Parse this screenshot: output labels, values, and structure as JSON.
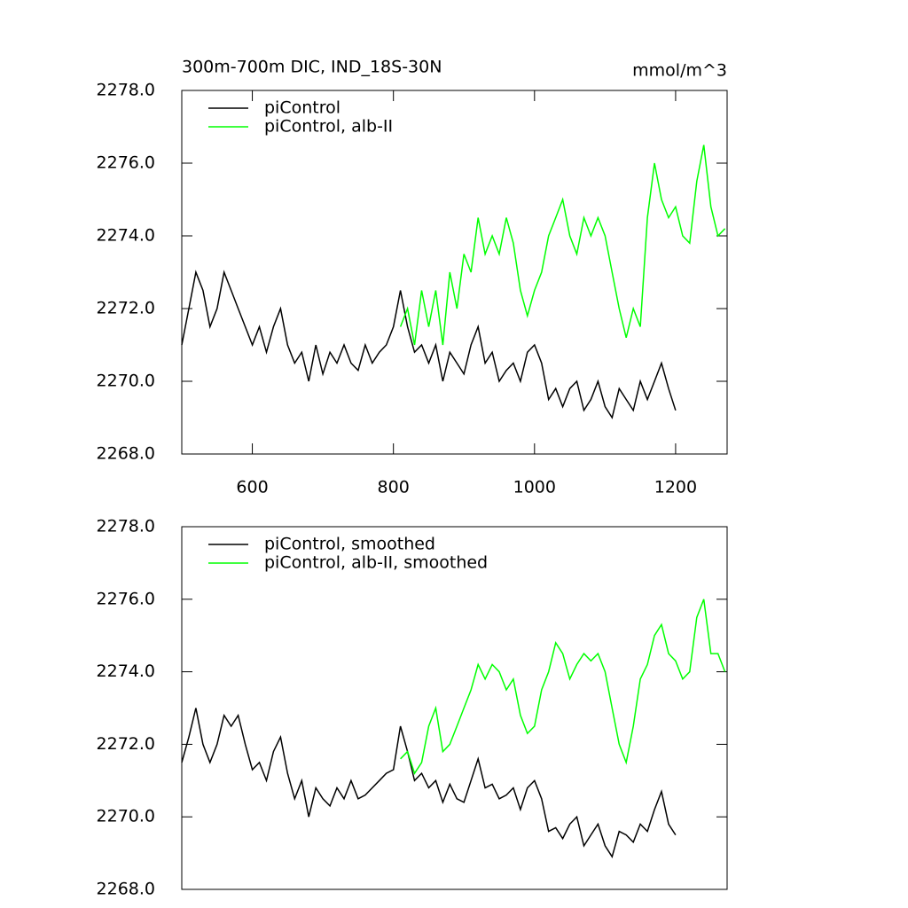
{
  "chart_data": [
    {
      "type": "line",
      "title": "300m-700m DIC, IND_18S-30N",
      "units": "mmol/m^3",
      "xlim": [
        500,
        1273
      ],
      "xticks": [
        600,
        800,
        1000,
        1200
      ],
      "ylim": [
        2268,
        2278
      ],
      "yticks": [
        {
          "value": 2268,
          "label": "2268.0"
        },
        {
          "value": 2270,
          "label": "2270.0"
        },
        {
          "value": 2272,
          "label": "2272.0"
        },
        {
          "value": 2274,
          "label": "2274.0"
        },
        {
          "value": 2276,
          "label": "2276.0"
        },
        {
          "value": 2278,
          "label": "2278.0"
        }
      ],
      "legend": "upper left",
      "series": [
        {
          "name": "piControl",
          "color": "#000000",
          "x": [
            500,
            510,
            520,
            530,
            540,
            550,
            560,
            570,
            580,
            590,
            600,
            610,
            620,
            630,
            640,
            650,
            660,
            670,
            680,
            690,
            700,
            710,
            720,
            730,
            740,
            750,
            760,
            770,
            780,
            790,
            800,
            810,
            820,
            830,
            840,
            850,
            860,
            870,
            880,
            890,
            900,
            910,
            920,
            930,
            940,
            950,
            960,
            970,
            980,
            990,
            1000,
            1010,
            1020,
            1030,
            1040,
            1050,
            1060,
            1070,
            1080,
            1090,
            1100,
            1110,
            1120,
            1130,
            1140,
            1150,
            1160,
            1170,
            1180,
            1190,
            1200
          ],
          "values": [
            2271.0,
            2272.0,
            2273.0,
            2272.5,
            2271.5,
            2272.0,
            2273.0,
            2272.5,
            2272.0,
            2271.5,
            2271.0,
            2271.5,
            2270.8,
            2271.5,
            2272.0,
            2271.0,
            2270.5,
            2270.8,
            2270.0,
            2271.0,
            2270.2,
            2270.8,
            2270.5,
            2271.0,
            2270.5,
            2270.3,
            2271.0,
            2270.5,
            2270.8,
            2271.0,
            2271.5,
            2272.5,
            2271.5,
            2270.8,
            2271.0,
            2270.5,
            2271.0,
            2270.0,
            2270.8,
            2270.5,
            2270.2,
            2271.0,
            2271.5,
            2270.5,
            2270.8,
            2270.0,
            2270.3,
            2270.5,
            2270.0,
            2270.8,
            2271.0,
            2270.5,
            2269.5,
            2269.8,
            2269.3,
            2269.8,
            2270.0,
            2269.2,
            2269.5,
            2270.0,
            2269.3,
            2269.0,
            2269.8,
            2269.5,
            2269.2,
            2270.0,
            2269.5,
            2270.0,
            2270.5,
            2269.8,
            2269.2
          ]
        },
        {
          "name": "piControl, alb-II",
          "color": "#00ff00",
          "x": [
            810,
            820,
            830,
            840,
            850,
            860,
            870,
            880,
            890,
            900,
            910,
            920,
            930,
            940,
            950,
            960,
            970,
            980,
            990,
            1000,
            1010,
            1020,
            1030,
            1040,
            1050,
            1060,
            1070,
            1080,
            1090,
            1100,
            1110,
            1120,
            1130,
            1140,
            1150,
            1160,
            1170,
            1180,
            1190,
            1200,
            1210,
            1220,
            1230,
            1240,
            1250,
            1260,
            1270
          ],
          "values": [
            2271.5,
            2272.0,
            2271.0,
            2272.5,
            2271.5,
            2272.5,
            2271.0,
            2273.0,
            2272.0,
            2273.5,
            2273.0,
            2274.5,
            2273.5,
            2274.0,
            2273.5,
            2274.5,
            2273.8,
            2272.5,
            2271.8,
            2272.5,
            2273.0,
            2274.0,
            2274.5,
            2275.0,
            2274.0,
            2273.5,
            2274.5,
            2274.0,
            2274.5,
            2274.0,
            2273.0,
            2272.0,
            2271.2,
            2272.0,
            2271.5,
            2274.5,
            2276.0,
            2275.0,
            2274.5,
            2274.8,
            2274.0,
            2273.8,
            2275.5,
            2276.5,
            2274.8,
            2274.0,
            2274.2
          ]
        }
      ]
    },
    {
      "type": "line",
      "xlim": [
        500,
        1273
      ],
      "ylim": [
        2268,
        2278
      ],
      "yticks": [
        {
          "value": 2268,
          "label": "2268.0"
        },
        {
          "value": 2270,
          "label": "2270.0"
        },
        {
          "value": 2272,
          "label": "2272.0"
        },
        {
          "value": 2274,
          "label": "2274.0"
        },
        {
          "value": 2276,
          "label": "2276.0"
        },
        {
          "value": 2278,
          "label": "2278.0"
        }
      ],
      "legend": "upper left",
      "series": [
        {
          "name": "piControl, smoothed",
          "color": "#000000",
          "x": [
            500,
            510,
            520,
            530,
            540,
            550,
            560,
            570,
            580,
            590,
            600,
            610,
            620,
            630,
            640,
            650,
            660,
            670,
            680,
            690,
            700,
            710,
            720,
            730,
            740,
            750,
            760,
            770,
            780,
            790,
            800,
            810,
            820,
            830,
            840,
            850,
            860,
            870,
            880,
            890,
            900,
            910,
            920,
            930,
            940,
            950,
            960,
            970,
            980,
            990,
            1000,
            1010,
            1020,
            1030,
            1040,
            1050,
            1060,
            1070,
            1080,
            1090,
            1100,
            1110,
            1120,
            1130,
            1140,
            1150,
            1160,
            1170,
            1180,
            1190,
            1200
          ],
          "values": [
            2271.5,
            2272.2,
            2273.0,
            2272.0,
            2271.5,
            2272.0,
            2272.8,
            2272.5,
            2272.8,
            2272.0,
            2271.3,
            2271.5,
            2271.0,
            2271.8,
            2272.2,
            2271.2,
            2270.5,
            2271.0,
            2270.0,
            2270.8,
            2270.5,
            2270.3,
            2270.8,
            2270.5,
            2271.0,
            2270.5,
            2270.6,
            2270.8,
            2271.0,
            2271.2,
            2271.3,
            2272.5,
            2271.8,
            2271.0,
            2271.2,
            2270.8,
            2271.0,
            2270.4,
            2270.9,
            2270.5,
            2270.4,
            2271.0,
            2271.6,
            2270.8,
            2270.9,
            2270.5,
            2270.6,
            2270.8,
            2270.2,
            2270.8,
            2271.0,
            2270.5,
            2269.6,
            2269.7,
            2269.4,
            2269.8,
            2270.0,
            2269.2,
            2269.5,
            2269.8,
            2269.2,
            2268.9,
            2269.6,
            2269.5,
            2269.3,
            2269.8,
            2269.6,
            2270.2,
            2270.7,
            2269.8,
            2269.5
          ]
        },
        {
          "name": "piControl, alb-II, smoothed",
          "color": "#00ff00",
          "x": [
            810,
            820,
            830,
            840,
            850,
            860,
            870,
            880,
            890,
            900,
            910,
            920,
            930,
            940,
            950,
            960,
            970,
            980,
            990,
            1000,
            1010,
            1020,
            1030,
            1040,
            1050,
            1060,
            1070,
            1080,
            1090,
            1100,
            1110,
            1120,
            1130,
            1140,
            1150,
            1160,
            1170,
            1180,
            1190,
            1200,
            1210,
            1220,
            1230,
            1240,
            1250,
            1260,
            1270
          ],
          "values": [
            2271.6,
            2271.8,
            2271.2,
            2271.5,
            2272.5,
            2273.0,
            2271.8,
            2272.0,
            2272.5,
            2273.0,
            2273.5,
            2274.2,
            2273.8,
            2274.2,
            2274.0,
            2273.5,
            2273.8,
            2272.8,
            2272.3,
            2272.5,
            2273.5,
            2274.0,
            2274.8,
            2274.5,
            2273.8,
            2274.2,
            2274.5,
            2274.3,
            2274.5,
            2274.0,
            2273.0,
            2272.0,
            2271.5,
            2272.5,
            2273.8,
            2274.2,
            2275.0,
            2275.3,
            2274.5,
            2274.3,
            2273.8,
            2274.0,
            2275.5,
            2276.0,
            2274.5,
            2274.5,
            2274.0
          ]
        }
      ]
    }
  ]
}
